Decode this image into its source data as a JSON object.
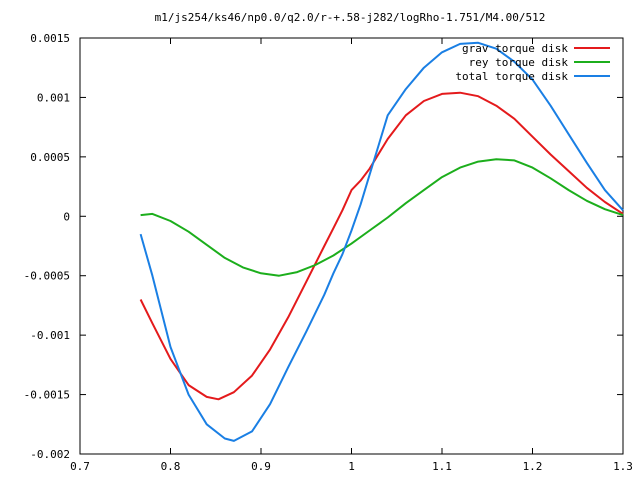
{
  "chart_data": {
    "type": "line",
    "title": "m1/js254/ks46/np0.0/q2.0/r-+.58-j282/logRho-1.751/M4.00/512",
    "xlabel": "",
    "ylabel": "",
    "xlim": [
      0.7,
      1.3
    ],
    "ylim": [
      -0.002,
      0.0015
    ],
    "xticks": [
      "0.7",
      "0.8",
      "0.9",
      "1",
      "1.1",
      "1.2",
      "1.3"
    ],
    "yticks": [
      "0.0015",
      "0.001",
      "0.0005",
      "0",
      "-0.0005",
      "-0.001",
      "-0.0015",
      "-0.002"
    ],
    "xtick_values": [
      0.7,
      0.8,
      0.9,
      1.0,
      1.1,
      1.2,
      1.3
    ],
    "ytick_values": [
      0.0015,
      0.001,
      0.0005,
      0,
      -0.0005,
      -0.001,
      -0.0015,
      -0.002
    ],
    "grid": false,
    "legend_position": "top-right",
    "series": [
      {
        "name": "grav torque disk",
        "color": "#e41a1c",
        "x": [
          0.767,
          0.78,
          0.8,
          0.82,
          0.84,
          0.853,
          0.87,
          0.89,
          0.91,
          0.93,
          0.95,
          0.97,
          0.98,
          0.99,
          1.0,
          1.01,
          1.02,
          1.04,
          1.06,
          1.08,
          1.1,
          1.12,
          1.14,
          1.16,
          1.18,
          1.2,
          1.22,
          1.24,
          1.26,
          1.28,
          1.3
        ],
        "y": [
          -0.0007,
          -0.0009,
          -0.0012,
          -0.00142,
          -0.00152,
          -0.00154,
          -0.00148,
          -0.00134,
          -0.00112,
          -0.00085,
          -0.00055,
          -0.00025,
          -0.0001,
          5e-05,
          0.00022,
          0.0003,
          0.0004,
          0.00065,
          0.00085,
          0.00097,
          0.00103,
          0.00104,
          0.00101,
          0.00093,
          0.00082,
          0.00067,
          0.00052,
          0.00038,
          0.00024,
          0.00012,
          2e-05
        ]
      },
      {
        "name": "rey torque disk",
        "color": "#1cae1c",
        "x": [
          0.767,
          0.78,
          0.8,
          0.82,
          0.84,
          0.86,
          0.88,
          0.9,
          0.92,
          0.94,
          0.96,
          0.98,
          1.0,
          1.02,
          1.04,
          1.06,
          1.08,
          1.1,
          1.12,
          1.14,
          1.16,
          1.18,
          1.2,
          1.22,
          1.24,
          1.26,
          1.28,
          1.3
        ],
        "y": [
          1e-05,
          2e-05,
          -4e-05,
          -0.00013,
          -0.00024,
          -0.00035,
          -0.00043,
          -0.00048,
          -0.0005,
          -0.00047,
          -0.00041,
          -0.00033,
          -0.00023,
          -0.00012,
          -1e-05,
          0.00011,
          0.00022,
          0.00033,
          0.00041,
          0.00046,
          0.00048,
          0.00047,
          0.00041,
          0.00032,
          0.00022,
          0.00013,
          6e-05,
          1e-05
        ]
      },
      {
        "name": "total torque disk",
        "color": "#1a7fe4",
        "x": [
          0.767,
          0.78,
          0.8,
          0.82,
          0.84,
          0.86,
          0.87,
          0.89,
          0.91,
          0.93,
          0.95,
          0.97,
          0.98,
          0.99,
          1.0,
          1.01,
          1.02,
          1.03,
          1.04,
          1.06,
          1.08,
          1.1,
          1.12,
          1.14,
          1.16,
          1.18,
          1.2,
          1.22,
          1.24,
          1.26,
          1.28,
          1.3
        ],
        "y": [
          -0.00015,
          -0.0005,
          -0.0011,
          -0.0015,
          -0.00175,
          -0.00187,
          -0.00189,
          -0.00181,
          -0.00158,
          -0.00127,
          -0.00097,
          -0.00066,
          -0.00048,
          -0.00032,
          -0.00012,
          0.0001,
          0.00035,
          0.0006,
          0.00085,
          0.00107,
          0.00125,
          0.00138,
          0.00145,
          0.00146,
          0.00141,
          0.0013,
          0.00115,
          0.00093,
          0.00069,
          0.00045,
          0.00022,
          5e-05
        ]
      }
    ]
  }
}
